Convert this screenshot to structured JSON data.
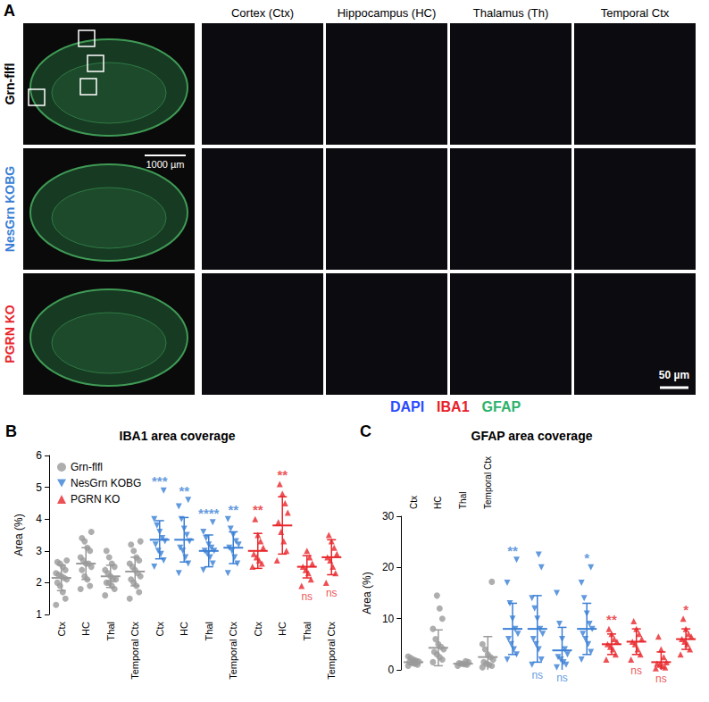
{
  "panel_a": {
    "panel_label": "A",
    "columns": [
      "Cortex (Ctx)",
      "Hippocampus (HC)",
      "Thalamus (Th)",
      "Temporal Ctx"
    ],
    "rows": [
      {
        "label": "Grn-flfl",
        "color": "#000000"
      },
      {
        "label": "NesGrn KOBG",
        "color": "#3a7fd5"
      },
      {
        "label": "PGRN KO",
        "color": "#e8262b"
      }
    ],
    "scale_bars": {
      "overview": "1000 µm",
      "tile": "50 µm"
    },
    "stains": [
      {
        "label": "DAPI",
        "color": "#2b4bff"
      },
      {
        "label": "IBA1",
        "color": "#e8202a"
      },
      {
        "label": "GFAP",
        "color": "#2eb36b"
      }
    ]
  },
  "chart_data": [
    {
      "panel_label": "B",
      "type": "scatter",
      "title": "IBA1 area coverage",
      "y_label": "Area (%)",
      "categories": [
        "Ctx",
        "HC",
        "Thal",
        "Temporal Ctx",
        "Ctx",
        "HC",
        "Thal",
        "Temporal Ctx",
        "Ctx",
        "HC",
        "Thal",
        "Temporal Ctx"
      ],
      "ylim": [
        1,
        6
      ],
      "yticks": [
        1,
        2,
        3,
        4,
        5,
        6
      ],
      "legend": "upper left",
      "series": [
        {
          "name": "Grn-flfl",
          "color": "#9a9a9a",
          "marker": "circle",
          "values": [
            [
              1.3,
              1.5,
              1.7,
              1.9,
              2.0,
              2.1,
              2.15,
              2.2,
              2.25,
              2.3,
              2.4,
              2.5,
              2.6,
              2.65,
              2.7
            ],
            [
              1.8,
              1.9,
              2.1,
              2.2,
              2.4,
              2.5,
              2.6,
              2.6,
              2.7,
              2.8,
              3.0,
              3.1,
              3.3,
              3.4,
              3.6
            ],
            [
              1.6,
              1.8,
              1.9,
              2.0,
              2.0,
              2.1,
              2.1,
              2.2,
              2.3,
              2.4,
              2.5,
              2.6,
              2.8,
              3.0
            ],
            [
              1.5,
              1.7,
              1.9,
              2.0,
              2.1,
              2.2,
              2.3,
              2.4,
              2.5,
              2.6,
              2.7,
              2.8,
              3.0,
              3.2,
              3.3
            ],
            null,
            null,
            null,
            null,
            null,
            null,
            null,
            null
          ],
          "mean": [
            2.15,
            2.6,
            2.2,
            2.35,
            null,
            null,
            null,
            null,
            null,
            null,
            null,
            null
          ],
          "sd": [
            0.4,
            0.5,
            0.35,
            0.45,
            null,
            null,
            null,
            null,
            null,
            null,
            null,
            null
          ]
        },
        {
          "name": "NesGrn KOBG",
          "color": "#3a7fd5",
          "marker": "triangle-down",
          "values": [
            null,
            null,
            null,
            null,
            [
              2.5,
              2.7,
              2.9,
              3.0,
              3.2,
              3.3,
              3.4,
              3.6,
              3.8,
              4.0,
              4.9
            ],
            [
              2.3,
              2.6,
              2.8,
              3.0,
              3.1,
              3.3,
              3.5,
              3.7,
              4.0,
              4.4,
              4.6
            ],
            [
              2.4,
              2.6,
              2.8,
              2.9,
              3.0,
              3.0,
              3.1,
              3.2,
              3.4,
              3.6,
              3.9
            ],
            [
              2.3,
              2.6,
              2.8,
              3.0,
              3.1,
              3.2,
              3.3,
              3.5,
              3.7,
              4.0
            ],
            null,
            null,
            null,
            null
          ],
          "mean": [
            null,
            null,
            null,
            null,
            3.35,
            3.35,
            3.0,
            3.1,
            null,
            null,
            null,
            null
          ],
          "sd": [
            null,
            null,
            null,
            null,
            0.6,
            0.7,
            0.5,
            0.5,
            null,
            null,
            null,
            null
          ],
          "significance": [
            null,
            null,
            null,
            null,
            "***",
            "**",
            "****",
            "**",
            null,
            null,
            null,
            null
          ]
        },
        {
          "name": "PGRN KO",
          "color": "#e8262b",
          "marker": "triangle",
          "values": [
            null,
            null,
            null,
            null,
            null,
            null,
            null,
            null,
            [
              2.5,
              2.6,
              2.7,
              2.8,
              2.9,
              3.1,
              3.3,
              3.5,
              4.0
            ],
            [
              2.7,
              3.0,
              3.3,
              3.6,
              3.9,
              4.2,
              4.5,
              4.8,
              5.1
            ],
            [
              1.9,
              2.1,
              2.3,
              2.4,
              2.5,
              2.6,
              2.8,
              3.0
            ],
            [
              2.0,
              2.3,
              2.5,
              2.7,
              2.8,
              2.9,
              3.1,
              3.3,
              3.5
            ]
          ],
          "mean": [
            null,
            null,
            null,
            null,
            null,
            null,
            null,
            null,
            3.0,
            3.8,
            2.5,
            2.8
          ],
          "sd": [
            null,
            null,
            null,
            null,
            null,
            null,
            null,
            null,
            0.55,
            0.9,
            0.35,
            0.55
          ],
          "significance": [
            null,
            null,
            null,
            null,
            null,
            null,
            null,
            null,
            "**",
            "**",
            "ns",
            "ns"
          ]
        }
      ]
    },
    {
      "panel_label": "C",
      "type": "scatter",
      "title": "GFAP area coverage",
      "y_label": "Area (%)",
      "categories": [
        "Ctx",
        "HC",
        "Thal",
        "Temporal Ctx",
        null,
        null,
        null,
        null,
        null,
        null,
        null,
        null
      ],
      "ylim": [
        0,
        30
      ],
      "yticks": [
        0,
        10,
        20,
        30
      ],
      "series": [
        {
          "color": "#9a9a9a",
          "marker": "circle",
          "values": [
            [
              0.8,
              1.0,
              1.2,
              1.3,
              1.5,
              1.6,
              1.8,
              2.0,
              2.3,
              2.6
            ],
            [
              1.5,
              2.0,
              2.5,
              3.0,
              3.5,
              4.0,
              4.5,
              5.0,
              6.0,
              8.0,
              10.0,
              12.0,
              14.5
            ],
            [
              0.8,
              1.0,
              1.1,
              1.2,
              1.3,
              1.5,
              1.7
            ],
            [
              0.5,
              0.8,
              1.0,
              1.2,
              1.5,
              2.0,
              2.5,
              3.0,
              4.0,
              5.0,
              17.2
            ],
            null,
            null,
            null,
            null,
            null,
            null,
            null,
            null
          ],
          "mean": [
            1.5,
            4.3,
            1.2,
            2.5,
            null,
            null,
            null,
            null,
            null,
            null,
            null,
            null
          ],
          "sd": [
            0.5,
            3.5,
            0.3,
            4.0,
            null,
            null,
            null,
            null,
            null,
            null,
            null,
            null
          ]
        },
        {
          "color": "#3a7fd5",
          "marker": "triangle-down",
          "values": [
            null,
            null,
            null,
            null,
            [
              2.0,
              3.0,
              4.0,
              5.0,
              6.0,
              7.0,
              8.0,
              10.0,
              13.0,
              17.0,
              21.5
            ],
            [
              1.0,
              2.0,
              4.0,
              5.0,
              6.0,
              7.0,
              8.0,
              10.0,
              12.0,
              14.0,
              20.0,
              22.5
            ],
            [
              0.5,
              1.0,
              1.5,
              2.0,
              2.5,
              3.0,
              4.0,
              6.0,
              9.0,
              15.0
            ],
            [
              2.0,
              3.5,
              5.0,
              6.0,
              7.0,
              8.0,
              9.0,
              11.0,
              14.0,
              17.0,
              20.0
            ],
            null,
            null,
            null,
            null
          ],
          "mean": [
            null,
            null,
            null,
            null,
            8.0,
            8.0,
            3.8,
            8.0,
            null,
            null,
            null,
            null
          ],
          "sd": [
            null,
            null,
            null,
            null,
            5.0,
            6.5,
            4.5,
            5.0,
            null,
            null,
            null,
            null
          ],
          "significance": [
            null,
            null,
            null,
            null,
            "**",
            "ns",
            "ns",
            "*",
            null,
            null,
            null,
            null
          ]
        },
        {
          "color": "#e8262b",
          "marker": "triangle",
          "values": [
            null,
            null,
            null,
            null,
            null,
            null,
            null,
            null,
            [
              2.0,
              3.0,
              4.0,
              4.5,
              5.0,
              5.5,
              6.0,
              7.0,
              8.0
            ],
            [
              2.0,
              3.0,
              4.0,
              5.0,
              5.5,
              6.0,
              7.0,
              8.0,
              9.5
            ],
            [
              0.3,
              0.5,
              0.8,
              1.0,
              1.2,
              1.5,
              2.5,
              4.0,
              6.5
            ],
            [
              3.0,
              4.0,
              5.0,
              5.5,
              6.0,
              6.5,
              7.0,
              8.0,
              10.0
            ]
          ],
          "mean": [
            null,
            null,
            null,
            null,
            null,
            null,
            null,
            null,
            5.0,
            5.5,
            1.5,
            6.0
          ],
          "sd": [
            null,
            null,
            null,
            null,
            null,
            null,
            null,
            null,
            2.0,
            2.5,
            2.0,
            2.0
          ],
          "significance": [
            null,
            null,
            null,
            null,
            null,
            null,
            null,
            null,
            "**",
            "ns",
            "ns",
            "*"
          ]
        }
      ]
    }
  ]
}
